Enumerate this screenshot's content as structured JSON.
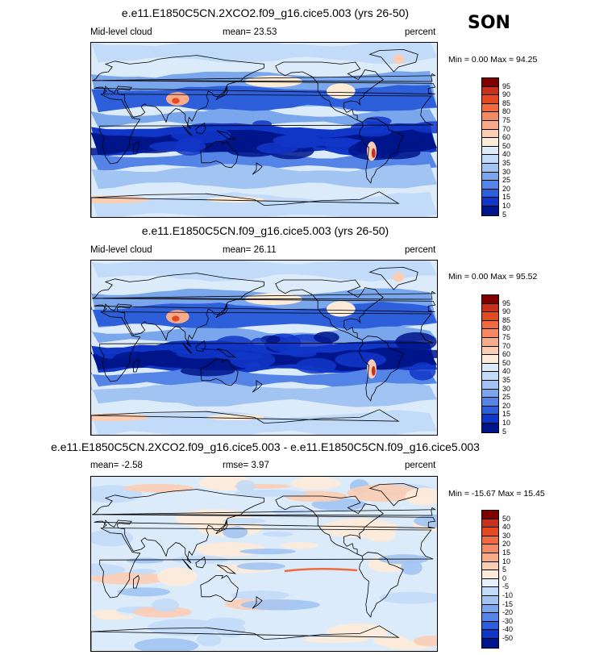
{
  "season": "SON",
  "chart_data": [
    {
      "type": "heatmap",
      "title": "e.e11.E1850C5CN.2XCO2.f09_g16.cice5.003 (yrs 26-50)",
      "left_label": "Mid-level cloud",
      "center_label": "mean=  23.53",
      "right_label": "percent",
      "minmax_label": "Min =   0.00 Max =  94.25",
      "colorbar": {
        "levels": [
          "95",
          "90",
          "85",
          "80",
          "75",
          "70",
          "60",
          "50",
          "40",
          "35",
          "30",
          "25",
          "20",
          "15",
          "10",
          "5"
        ],
        "colors": [
          "#800000",
          "#c8301e",
          "#e44a22",
          "#f06a40",
          "#f58a62",
          "#f8ab8a",
          "#fbcdb4",
          "#fdebd8",
          "#dcebfa",
          "#c2dbf8",
          "#a2c4f3",
          "#7aa6ec",
          "#5484e6",
          "#2e5fdb",
          "#1036c8",
          "#00158a"
        ]
      },
      "stats": {
        "min": 0.0,
        "max": 94.25,
        "mean": 23.53
      }
    },
    {
      "type": "heatmap",
      "title": "e.e11.E1850C5CN.f09_g16.cice5.003 (yrs 26-50)",
      "left_label": "Mid-level cloud",
      "center_label": "mean=  26.11",
      "right_label": "percent",
      "minmax_label": "Min =   0.00 Max =  95.52",
      "colorbar": {
        "levels": [
          "95",
          "90",
          "85",
          "80",
          "75",
          "70",
          "60",
          "50",
          "40",
          "35",
          "30",
          "25",
          "20",
          "15",
          "10",
          "5"
        ],
        "colors": [
          "#800000",
          "#c8301e",
          "#e44a22",
          "#f06a40",
          "#f58a62",
          "#f8ab8a",
          "#fbcdb4",
          "#fdebd8",
          "#dcebfa",
          "#c2dbf8",
          "#a2c4f3",
          "#7aa6ec",
          "#5484e6",
          "#2e5fdb",
          "#1036c8",
          "#00158a"
        ]
      },
      "stats": {
        "min": 0.0,
        "max": 95.52,
        "mean": 26.11
      }
    },
    {
      "type": "heatmap",
      "title": "e.e11.E1850C5CN.2XCO2.f09_g16.cice5.003 - e.e11.E1850C5CN.f09_g16.cice5.003",
      "left_label": "mean=  -2.58",
      "center_label": "rmse=   3.97",
      "right_label": "percent",
      "minmax_label": "Min = -15.67 Max =  15.45",
      "colorbar": {
        "levels": [
          "50",
          "40",
          "30",
          "20",
          "15",
          "10",
          "5",
          "0",
          "-5",
          "-10",
          "-15",
          "-20",
          "-30",
          "-40",
          "-50"
        ],
        "colors": [
          "#800000",
          "#c8301e",
          "#e44a22",
          "#f06a40",
          "#f58a62",
          "#f8ab8a",
          "#fbcdb4",
          "#fdebd8",
          "#e6f0fc",
          "#c2dbf8",
          "#a2c4f3",
          "#7aa6ec",
          "#5484e6",
          "#2e5fdb",
          "#1036c8",
          "#00158a"
        ]
      },
      "stats": {
        "min": -15.67,
        "max": 15.45,
        "mean": -2.58,
        "rmse": 3.97
      }
    }
  ]
}
